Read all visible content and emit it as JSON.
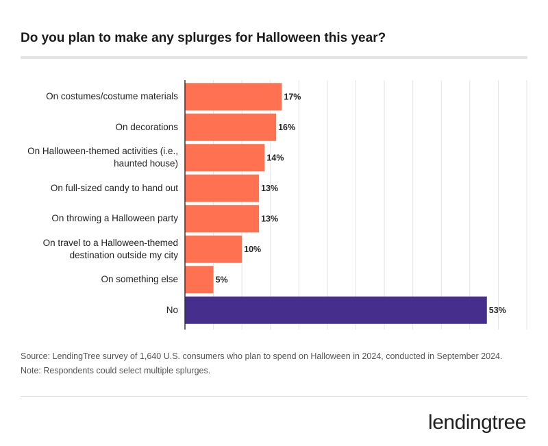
{
  "chart_data": {
    "type": "bar",
    "orientation": "horizontal",
    "title": "Do you plan to make any splurges for Halloween this year?",
    "categories": [
      "On costumes/costume materials",
      "On decorations",
      "On Halloween-themed activities (i.e., haunted house)",
      "On full-sized candy to hand out",
      "On throwing a Halloween party",
      "On travel to a Halloween-themed destination outside my city",
      "On something else",
      "No"
    ],
    "values": [
      17,
      16,
      14,
      13,
      13,
      10,
      5,
      53
    ],
    "value_labels": [
      "17%",
      "16%",
      "14%",
      "13%",
      "13%",
      "10%",
      "5%",
      "53%"
    ],
    "colors": [
      "#ff7150",
      "#ff7150",
      "#ff7150",
      "#ff7150",
      "#ff7150",
      "#ff7150",
      "#ff7150",
      "#462e8c"
    ],
    "xlim": [
      0,
      60
    ],
    "xticks": [
      0,
      5,
      10,
      15,
      20,
      25,
      30,
      35,
      40,
      45,
      50,
      55,
      60
    ],
    "grid": true,
    "source": "Source: LendingTree survey of 1,640 U.S. consumers who plan to spend on Halloween in 2024, conducted in September 2024. Note: Respondents could select multiple splurges."
  },
  "logo": "lendingtree"
}
